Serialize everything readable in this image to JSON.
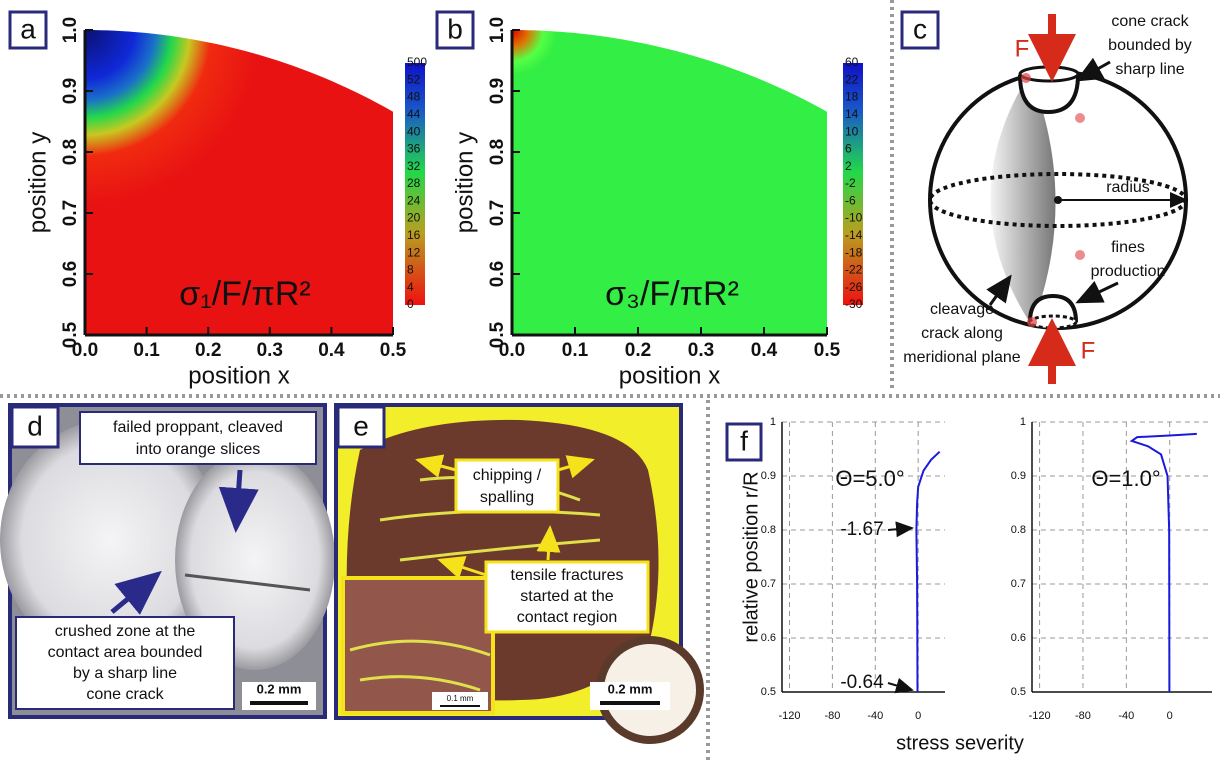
{
  "chart_data": [
    {
      "type": "heatmap",
      "panel": "a",
      "xlabel": "position x",
      "ylabel": "position y",
      "annotation": "σ₁/F/πR²",
      "xlim": [
        0,
        0.5
      ],
      "ylim": [
        0.5,
        1
      ],
      "xticks": [
        {
          "value": 0,
          "label": "0.0"
        },
        0.1,
        0.2,
        0.3,
        0.4,
        0.5
      ],
      "yticks": [
        0.5,
        0.6,
        0.7,
        0.8,
        0.9,
        {
          "value": 1,
          "label": "1.0"
        }
      ],
      "colorbar_ticks": [
        500,
        52,
        48,
        44,
        40,
        36,
        32,
        28,
        24,
        20,
        16,
        12,
        8,
        4,
        0
      ]
    },
    {
      "type": "heatmap",
      "panel": "b",
      "xlabel": "position x",
      "ylabel": "position y",
      "annotation": "σ₃/F/πR²",
      "xlim": [
        0,
        0.5
      ],
      "ylim": [
        0.5,
        1
      ],
      "xticks": [
        {
          "value": 0,
          "label": "0.0"
        },
        0.1,
        0.2,
        0.3,
        0.4,
        0.5
      ],
      "yticks": [
        0.5,
        0.6,
        0.7,
        0.8,
        0.9,
        {
          "value": 1,
          "label": "1.0"
        }
      ],
      "colorbar_ticks": [
        60,
        22,
        18,
        14,
        10,
        6,
        2,
        -2,
        -6,
        -10,
        -14,
        -18,
        -22,
        -26,
        -30
      ]
    },
    {
      "type": "line",
      "annotations": [
        "Θ=5.0°",
        "-1.67",
        "-0.64"
      ],
      "color": "#1a1adc",
      "xlim": [
        -127,
        25
      ],
      "ylim": [
        0.5,
        1
      ],
      "xticks": [
        -120,
        -80,
        -40,
        0
      ],
      "yticks": [
        0.5,
        0.6,
        0.7,
        0.8,
        0.9,
        1
      ],
      "x": [
        -0.64,
        -0.8,
        -1.0,
        -1.67,
        -1.0,
        0,
        5,
        12,
        20
      ],
      "values": [
        0.5,
        0.6,
        0.7,
        0.8,
        0.85,
        0.88,
        0.91,
        0.93,
        0.945
      ]
    },
    {
      "type": "line",
      "annotations": [
        "Θ=1.0°"
      ],
      "color": "#1a1adc",
      "xlim": [
        -127,
        39
      ],
      "ylim": [
        0.5,
        1
      ],
      "xticks": [
        -120,
        -80,
        -40,
        0
      ],
      "yticks": [
        0.5,
        0.6,
        0.7,
        0.8,
        0.9,
        1
      ],
      "x": [
        -0.3,
        -0.5,
        -2,
        -8,
        -20,
        -35,
        -30,
        0,
        25
      ],
      "values": [
        0.5,
        0.8,
        0.9,
        0.94,
        0.955,
        0.965,
        0.972,
        0.975,
        0.978
      ]
    }
  ],
  "panel_f": {
    "label": "f",
    "xlabel": "stress severity",
    "ylabel": "relative position r/R"
  },
  "diagram": {
    "label": "c",
    "cone_crack": [
      "cone crack",
      "bounded by",
      "sharp line"
    ],
    "force": [
      "F",
      "F"
    ],
    "radius": "radius",
    "fines": [
      "fines",
      "production"
    ],
    "cleavage": [
      "cleavage",
      "crack along",
      "meridional plane"
    ]
  },
  "photos": [
    {
      "label": "d",
      "top_caption": [
        "failed proppant, cleaved",
        "into orange slices"
      ],
      "bottom_caption": [
        "crushed zone at the",
        "contact area bounded",
        "by a sharp line",
        "cone crack"
      ],
      "scale": "0.2 mm"
    },
    {
      "label": "e",
      "caption_1": [
        "chipping /",
        "spalling"
      ],
      "caption_2": [
        "tensile fractures",
        "started at the",
        "contact region"
      ],
      "scale": "0.2 mm",
      "inset_scale": "0.1 mm"
    }
  ]
}
